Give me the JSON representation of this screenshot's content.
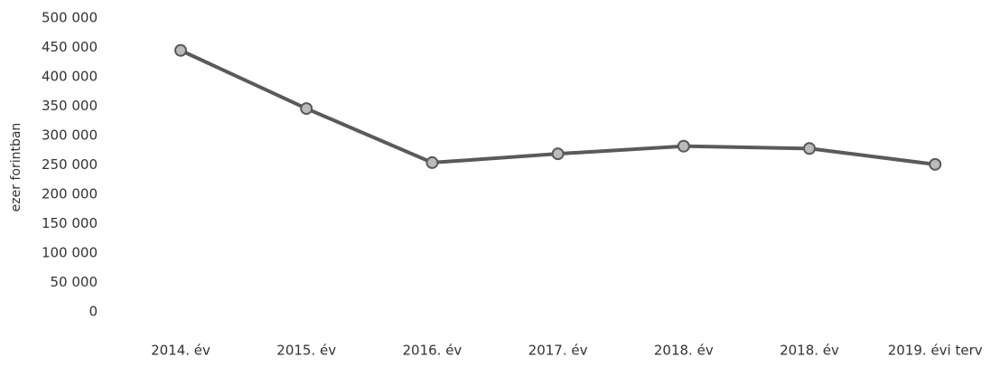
{
  "chart_data": {
    "type": "line",
    "y_label": "ezer forintban",
    "categories": [
      "2014. év",
      "2015. év",
      "2016. év",
      "2017. év",
      "2018. év",
      "2018. év",
      "2019. évi terv"
    ],
    "series": [
      {
        "color": "#5a5a5a",
        "values": [
          445000,
          346000,
          254000,
          269000,
          282000,
          278000,
          251000
        ]
      }
    ],
    "ylim": [
      0,
      500000
    ],
    "yticks": [
      0,
      {
        "value": 50000,
        "label": "50 000"
      },
      {
        "value": 100000,
        "label": "100 000"
      },
      {
        "value": 150000,
        "label": "150 000"
      },
      {
        "value": 200000,
        "label": "200 000"
      },
      {
        "value": 250000,
        "label": "250 000"
      },
      {
        "value": 300000,
        "label": "300 000"
      },
      {
        "value": 350000,
        "label": "350 000"
      },
      {
        "value": 400000,
        "label": "400 000"
      },
      {
        "value": 450000,
        "label": "450 000"
      },
      {
        "value": 500000,
        "label": "500 000"
      }
    ],
    "grid": false
  }
}
